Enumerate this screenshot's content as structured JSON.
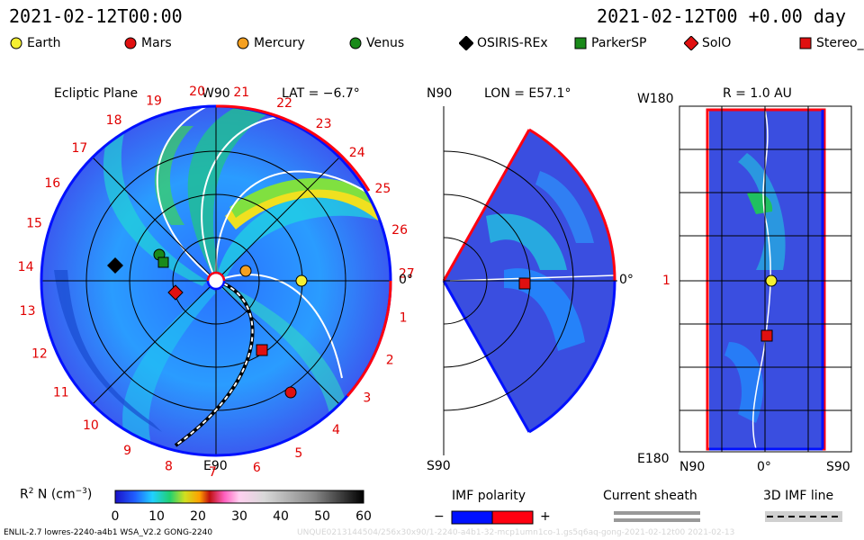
{
  "header": {
    "datetime": "2021-02-12T00:00",
    "model_time": "2021-02-12T00 +0.00 day"
  },
  "legend": [
    {
      "label": "Earth",
      "color": "#f5f032",
      "shape": "circle"
    },
    {
      "label": "Mars",
      "color": "#e01010",
      "shape": "circle"
    },
    {
      "label": "Mercury",
      "color": "#f5a020",
      "shape": "circle"
    },
    {
      "label": "Venus",
      "color": "#1a8a1a",
      "shape": "circle"
    },
    {
      "label": "OSIRIS-REx",
      "color": "#000000",
      "shape": "diamond"
    },
    {
      "label": "ParkerSP",
      "color": "#1a8a1a",
      "shape": "square"
    },
    {
      "label": "SolO",
      "color": "#e01010",
      "shape": "diamond"
    },
    {
      "label": "Stereo_",
      "color": "#e01010",
      "shape": "square"
    }
  ],
  "ecliptic": {
    "title": "Ecliptic Plane",
    "lat": "LAT = −6.7°",
    "top_label": "W90",
    "bottom_label": "E90",
    "right_label": "0°",
    "sectors": [
      {
        "n": "1"
      },
      {
        "n": "2"
      },
      {
        "n": "3"
      },
      {
        "n": "4"
      },
      {
        "n": "5"
      },
      {
        "n": "6"
      },
      {
        "n": "7"
      },
      {
        "n": "8"
      },
      {
        "n": "9"
      },
      {
        "n": "10"
      },
      {
        "n": "11"
      },
      {
        "n": "12"
      },
      {
        "n": "13"
      },
      {
        "n": "14"
      },
      {
        "n": "15"
      },
      {
        "n": "16"
      },
      {
        "n": "17"
      },
      {
        "n": "18"
      },
      {
        "n": "19"
      },
      {
        "n": "20"
      },
      {
        "n": "21"
      },
      {
        "n": "22"
      },
      {
        "n": "23"
      },
      {
        "n": "24"
      },
      {
        "n": "25"
      },
      {
        "n": "26"
      },
      {
        "n": "27"
      }
    ]
  },
  "meridional": {
    "top_label": "N90",
    "lon": "LON = E57.1°",
    "bottom_label": "S90",
    "right_label": "0°"
  },
  "radial": {
    "title": "R = 1.0 AU",
    "top_left": "W180",
    "bottom_left": "E180",
    "mid_left": "1",
    "xticks": [
      "N90",
      "0°",
      "S90"
    ]
  },
  "colorbar": {
    "label_main": "R",
    "label_sup": "2",
    "label_rest": " N (cm",
    "label_sup2": "−3",
    "label_end": ")",
    "ticks": [
      "0",
      "10",
      "20",
      "30",
      "40",
      "50",
      "60"
    ]
  },
  "polarity": {
    "title": "IMF polarity",
    "minus": "−",
    "plus": "+",
    "neg_color": "#0010ff",
    "pos_color": "#ff0010"
  },
  "sheath": {
    "title": "Current sheath"
  },
  "imf3d": {
    "title": "3D IMF line"
  },
  "footer": {
    "left": "ENLIL-2.7 lowres-2240-a4b1 WSA_V2.2 GONG-2240",
    "watermark": "UNQUE0213144504/256x30x90/1-2240-a4b1-32-mcp1umn1co-1.gs5q6aq-gong-2021-02-12t00   2021-02-13"
  }
}
